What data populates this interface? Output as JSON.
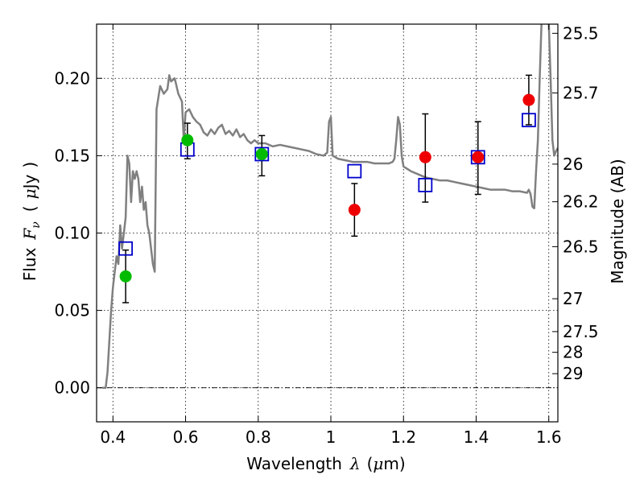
{
  "chart_data": {
    "type": "scatter",
    "title": "",
    "xlabel": "Wavelength",
    "xlabel_symbol": "λ",
    "xlabel_unit_open": "(",
    "xlabel_unit_mu": "μ",
    "xlabel_unit_rest": "m)",
    "ylabel": "Flux",
    "ylabel_symbol_F": "F",
    "ylabel_symbol_nu": "ν",
    "ylabel_unit_open": "(",
    "ylabel_unit_mu": "μ",
    "ylabel_unit_rest": "Jy",
    "ylabel_unit_close": ")",
    "ylabel_right": "Magnitude (AB)",
    "xlim": [
      0.355,
      1.625
    ],
    "ylim": [
      -0.022,
      0.235
    ],
    "grid": true,
    "x_ticks": [
      {
        "value": 0.4,
        "label": "0.4"
      },
      {
        "value": 0.6,
        "label": "0.6"
      },
      {
        "value": 0.8,
        "label": "0.8"
      },
      {
        "value": 1.0,
        "label": "1"
      },
      {
        "value": 1.2,
        "label": "1.2"
      },
      {
        "value": 1.4,
        "label": "1.4"
      },
      {
        "value": 1.6,
        "label": "1.6"
      }
    ],
    "y_ticks": [
      {
        "value": 0.0,
        "label": "0.00"
      },
      {
        "value": 0.05,
        "label": "0.05"
      },
      {
        "value": 0.1,
        "label": "0.10"
      },
      {
        "value": 0.15,
        "label": "0.15"
      },
      {
        "value": 0.2,
        "label": "0.20"
      }
    ],
    "magnitude_ticks": [
      {
        "value": 25.5,
        "label": "25.5"
      },
      {
        "value": 25.7,
        "label": "25.7"
      },
      {
        "value": 26.0,
        "label": "26"
      },
      {
        "value": 26.2,
        "label": "26.2"
      },
      {
        "value": 26.5,
        "label": "26.5"
      },
      {
        "value": 27.0,
        "label": "27"
      },
      {
        "value": 27.5,
        "label": "27.5"
      },
      {
        "value": 28.0,
        "label": "28"
      },
      {
        "value": 29.0,
        "label": "29"
      }
    ],
    "colors": {
      "sed": "#808080",
      "model_squares": "#0000cc",
      "green_points": "#00bb00",
      "red_points": "#ee0000",
      "errorbars": "#000000"
    },
    "model_sed": [
      [
        0.37,
        0.0
      ],
      [
        0.38,
        0.0
      ],
      [
        0.385,
        0.01
      ],
      [
        0.39,
        0.03
      ],
      [
        0.395,
        0.05
      ],
      [
        0.4,
        0.065
      ],
      [
        0.405,
        0.075
      ],
      [
        0.41,
        0.085
      ],
      [
        0.415,
        0.08
      ],
      [
        0.42,
        0.105
      ],
      [
        0.425,
        0.09
      ],
      [
        0.43,
        0.1
      ],
      [
        0.435,
        0.11
      ],
      [
        0.44,
        0.15
      ],
      [
        0.445,
        0.145
      ],
      [
        0.45,
        0.12
      ],
      [
        0.455,
        0.14
      ],
      [
        0.46,
        0.135
      ],
      [
        0.465,
        0.14
      ],
      [
        0.47,
        0.135
      ],
      [
        0.475,
        0.12
      ],
      [
        0.48,
        0.13
      ],
      [
        0.485,
        0.115
      ],
      [
        0.49,
        0.12
      ],
      [
        0.495,
        0.105
      ],
      [
        0.5,
        0.1
      ],
      [
        0.505,
        0.09
      ],
      [
        0.51,
        0.08
      ],
      [
        0.515,
        0.075
      ],
      [
        0.52,
        0.18
      ],
      [
        0.53,
        0.195
      ],
      [
        0.54,
        0.19
      ],
      [
        0.55,
        0.193
      ],
      [
        0.555,
        0.202
      ],
      [
        0.56,
        0.198
      ],
      [
        0.57,
        0.2
      ],
      [
        0.58,
        0.19
      ],
      [
        0.59,
        0.185
      ],
      [
        0.595,
        0.16
      ],
      [
        0.6,
        0.178
      ],
      [
        0.61,
        0.18
      ],
      [
        0.62,
        0.175
      ],
      [
        0.63,
        0.172
      ],
      [
        0.64,
        0.17
      ],
      [
        0.65,
        0.165
      ],
      [
        0.66,
        0.163
      ],
      [
        0.67,
        0.167
      ],
      [
        0.68,
        0.164
      ],
      [
        0.69,
        0.168
      ],
      [
        0.7,
        0.17
      ],
      [
        0.71,
        0.164
      ],
      [
        0.72,
        0.166
      ],
      [
        0.73,
        0.163
      ],
      [
        0.74,
        0.167
      ],
      [
        0.75,
        0.162
      ],
      [
        0.76,
        0.164
      ],
      [
        0.77,
        0.16
      ],
      [
        0.78,
        0.158
      ],
      [
        0.79,
        0.16
      ],
      [
        0.8,
        0.158
      ],
      [
        0.82,
        0.158
      ],
      [
        0.84,
        0.156
      ],
      [
        0.86,
        0.157
      ],
      [
        0.88,
        0.156
      ],
      [
        0.9,
        0.155
      ],
      [
        0.92,
        0.154
      ],
      [
        0.94,
        0.153
      ],
      [
        0.96,
        0.151
      ],
      [
        0.98,
        0.15
      ],
      [
        0.99,
        0.152
      ],
      [
        0.995,
        0.172
      ],
      [
        1.0,
        0.175
      ],
      [
        1.005,
        0.15
      ],
      [
        1.02,
        0.148
      ],
      [
        1.04,
        0.147
      ],
      [
        1.06,
        0.146
      ],
      [
        1.08,
        0.146
      ],
      [
        1.1,
        0.146
      ],
      [
        1.12,
        0.145
      ],
      [
        1.14,
        0.145
      ],
      [
        1.16,
        0.145
      ],
      [
        1.17,
        0.146
      ],
      [
        1.175,
        0.148
      ],
      [
        1.18,
        0.16
      ],
      [
        1.185,
        0.175
      ],
      [
        1.19,
        0.17
      ],
      [
        1.195,
        0.15
      ],
      [
        1.2,
        0.143
      ],
      [
        1.22,
        0.14
      ],
      [
        1.24,
        0.138
      ],
      [
        1.26,
        0.136
      ],
      [
        1.28,
        0.135
      ],
      [
        1.3,
        0.134
      ],
      [
        1.32,
        0.134
      ],
      [
        1.34,
        0.133
      ],
      [
        1.36,
        0.132
      ],
      [
        1.38,
        0.131
      ],
      [
        1.4,
        0.13
      ],
      [
        1.42,
        0.129
      ],
      [
        1.44,
        0.128
      ],
      [
        1.46,
        0.128
      ],
      [
        1.48,
        0.128
      ],
      [
        1.5,
        0.127
      ],
      [
        1.52,
        0.127
      ],
      [
        1.54,
        0.126
      ],
      [
        1.545,
        0.128
      ],
      [
        1.55,
        0.125
      ],
      [
        1.555,
        0.117
      ],
      [
        1.56,
        0.116
      ],
      [
        1.565,
        0.14
      ],
      [
        1.57,
        0.16
      ],
      [
        1.575,
        0.2
      ],
      [
        1.58,
        0.236
      ]
    ],
    "sed_right_segment": [
      [
        1.6,
        0.236
      ],
      [
        1.605,
        0.2
      ],
      [
        1.61,
        0.16
      ],
      [
        1.615,
        0.15
      ],
      [
        1.62,
        0.153
      ],
      [
        1.625,
        0.155
      ]
    ],
    "model_photometry": [
      {
        "x": 0.435,
        "y": 0.09
      },
      {
        "x": 0.605,
        "y": 0.154
      },
      {
        "x": 0.81,
        "y": 0.151
      },
      {
        "x": 1.065,
        "y": 0.14
      },
      {
        "x": 1.26,
        "y": 0.131
      },
      {
        "x": 1.405,
        "y": 0.149
      },
      {
        "x": 1.545,
        "y": 0.173
      }
    ],
    "observed_green": [
      {
        "x": 0.435,
        "y": 0.072,
        "err_low": 0.055,
        "err_high": 0.089
      },
      {
        "x": 0.605,
        "y": 0.16,
        "err_low": 0.148,
        "err_high": 0.171
      },
      {
        "x": 0.81,
        "y": 0.151,
        "err_low": 0.137,
        "err_high": 0.163
      }
    ],
    "observed_red": [
      {
        "x": 1.065,
        "y": 0.115,
        "err_low": 0.098,
        "err_high": 0.132
      },
      {
        "x": 1.26,
        "y": 0.149,
        "err_low": 0.12,
        "err_high": 0.177
      },
      {
        "x": 1.405,
        "y": 0.149,
        "err_low": 0.125,
        "err_high": 0.172
      },
      {
        "x": 1.545,
        "y": 0.186,
        "err_low": 0.17,
        "err_high": 0.202
      }
    ]
  }
}
